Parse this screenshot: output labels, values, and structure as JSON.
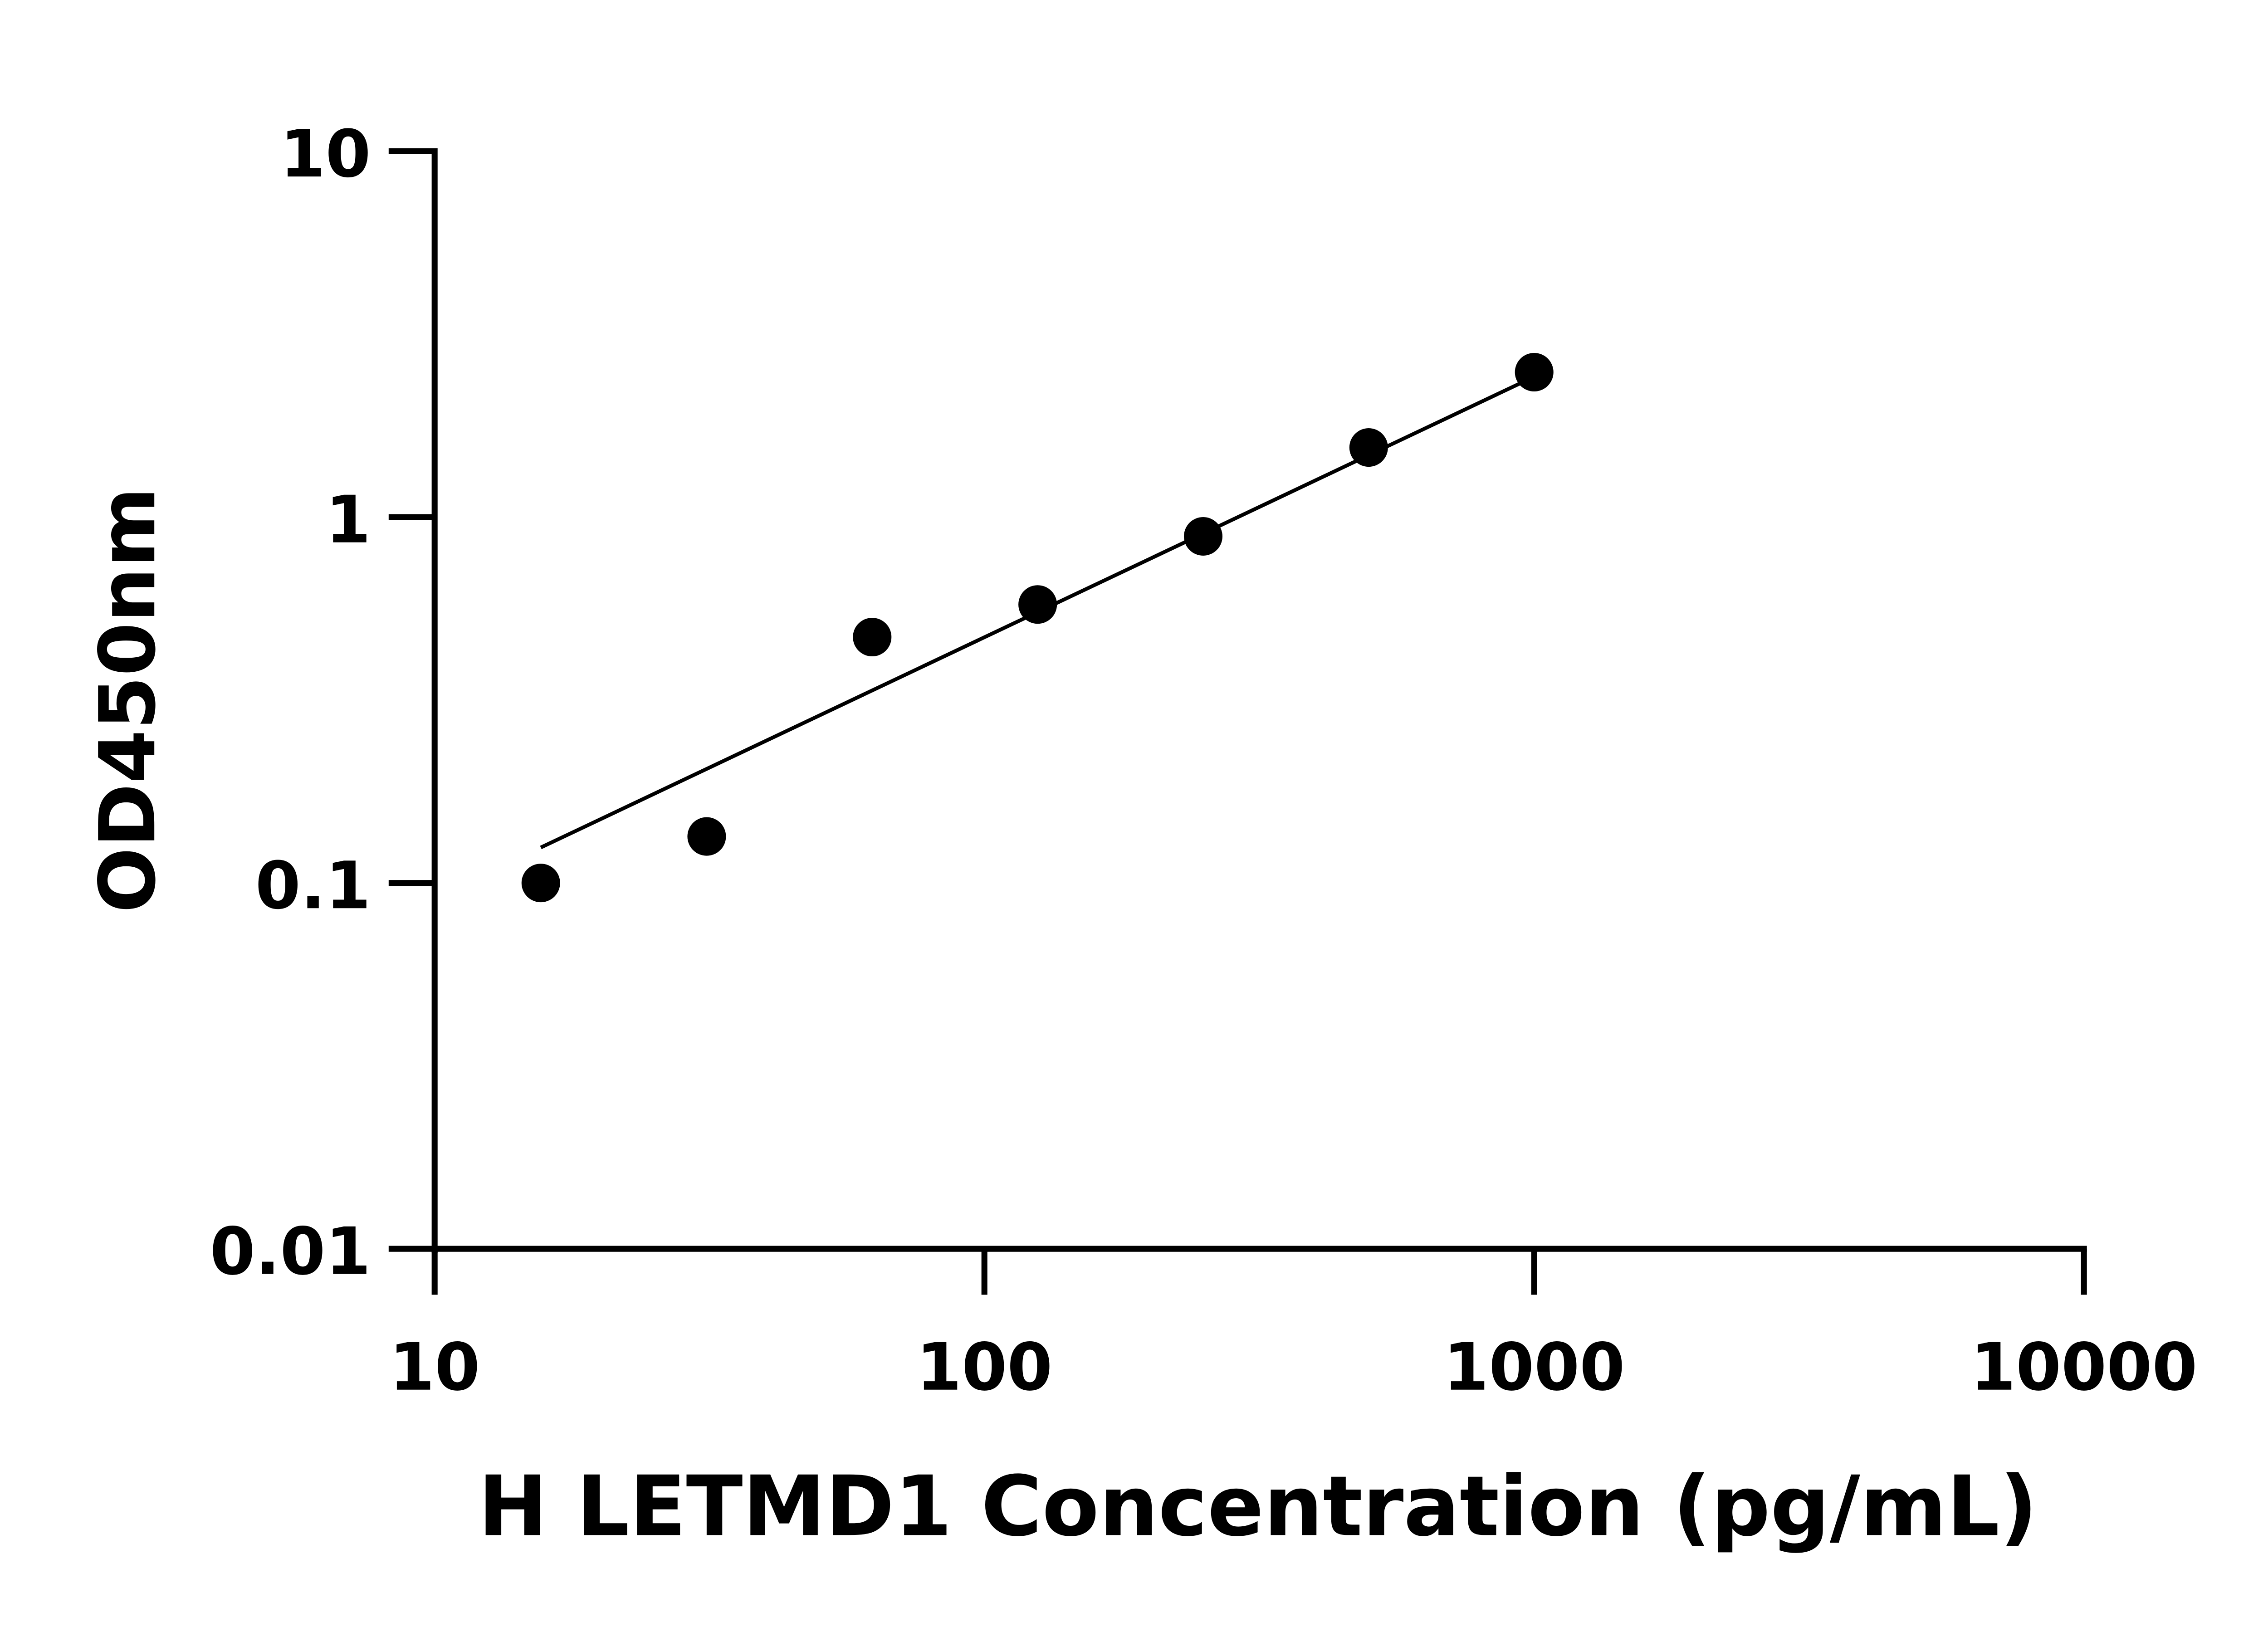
{
  "chart_data": {
    "type": "scatter",
    "title": "",
    "xlabel": "H LETMD1 Concentration (pg/mL)",
    "ylabel": "OD450nm",
    "x_scale": "log",
    "y_scale": "log",
    "xlim": [
      10,
      10000
    ],
    "ylim": [
      0.01,
      10
    ],
    "x_ticks": [
      "10",
      "100",
      "1000",
      "10000"
    ],
    "y_ticks": [
      "0.01",
      "0.1",
      "1",
      "10"
    ],
    "grid": false,
    "series": [
      {
        "x": [
          15.6,
          31.25,
          62.5,
          125,
          250,
          500,
          1000
        ],
        "y": [
          0.1,
          0.134,
          0.47,
          0.577,
          0.886,
          1.55,
          2.49
        ],
        "color": "#000000",
        "marker": "circle"
      }
    ],
    "fit_line": {
      "x": [
        15.6,
        1000
      ],
      "y": [
        0.125,
        2.42
      ],
      "color": "#000000"
    }
  }
}
